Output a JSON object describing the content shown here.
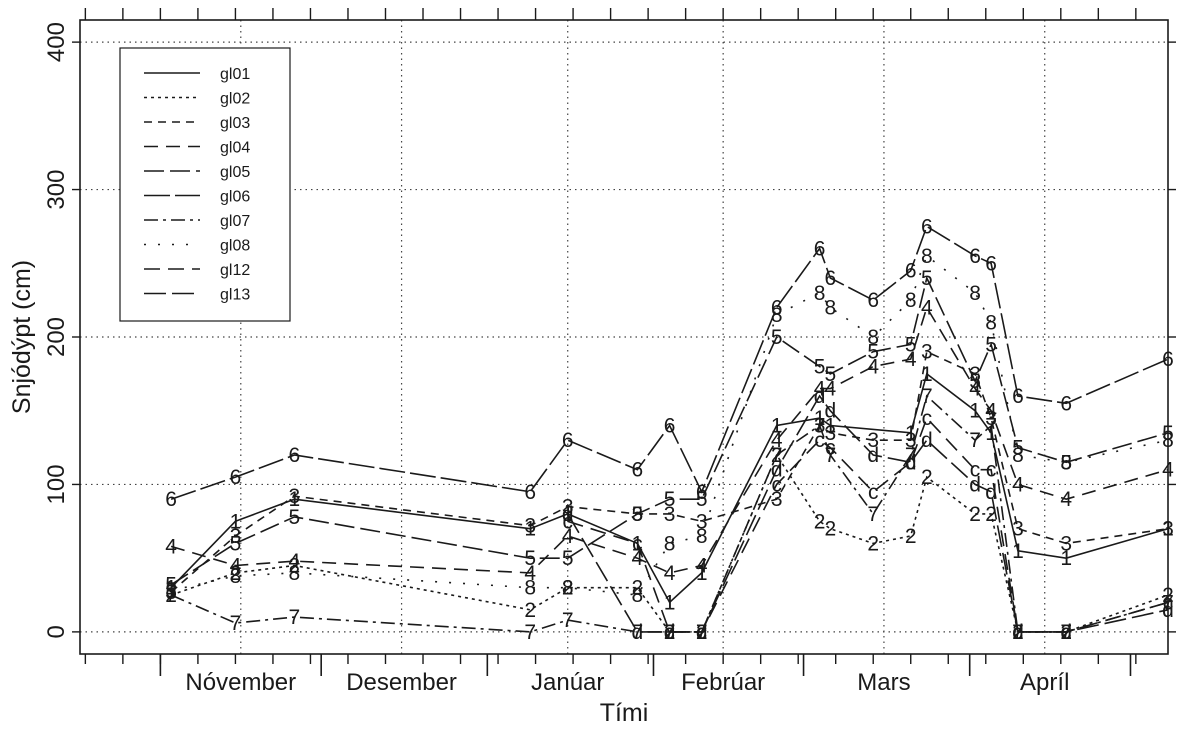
{
  "chart_data": {
    "type": "line",
    "xlabel": "Tími",
    "ylabel": "Snjódýpt (cm)",
    "ylim": [
      -15,
      415
    ],
    "yticks": [
      0,
      100,
      200,
      300,
      400
    ],
    "xlim": [
      "2000-10-17",
      "2001-05-08"
    ],
    "month_labels": [
      "Nóvember",
      "Desember",
      "Janúar",
      "Febrúar",
      "Mars",
      "Apríl"
    ],
    "month_label_dates": [
      "2000-11-16",
      "2000-12-16",
      "2001-01-16",
      "2001-02-14",
      "2001-03-16",
      "2001-04-15"
    ],
    "month_boundaries": [
      "2000-11-01",
      "2000-12-01",
      "2001-01-01",
      "2001-02-01",
      "2001-03-01",
      "2001-04-01",
      "2001-05-01"
    ],
    "grid": true,
    "legend_position": "top-left",
    "series": [
      {
        "name": "gl01",
        "marker": "1",
        "dash": "none",
        "points": [
          [
            "2000-11-03",
            30
          ],
          [
            "2000-11-15",
            75
          ],
          [
            "2000-11-26",
            90
          ],
          [
            "2001-01-09",
            70
          ],
          [
            "2001-01-16",
            80
          ],
          [
            "2001-01-29",
            60
          ],
          [
            "2001-02-04",
            20
          ],
          [
            "2001-02-10",
            40
          ],
          [
            "2001-02-24",
            140
          ],
          [
            "2001-03-04",
            145
          ],
          [
            "2001-03-06",
            140
          ],
          [
            "2001-03-21",
            135
          ],
          [
            "2001-03-24",
            175
          ],
          [
            "2001-04-02",
            150
          ],
          [
            "2001-04-05",
            135
          ],
          [
            "2001-04-10",
            55
          ],
          [
            "2001-04-19",
            50
          ],
          [
            "2001-05-08",
            70
          ]
        ]
      },
      {
        "name": "gl02",
        "marker": "2",
        "dash": "3 4",
        "points": [
          [
            "2000-11-03",
            25
          ],
          [
            "2000-11-15",
            40
          ],
          [
            "2000-11-26",
            45
          ],
          [
            "2001-01-09",
            15
          ],
          [
            "2001-01-16",
            30
          ],
          [
            "2001-01-29",
            30
          ],
          [
            "2001-02-04",
            0
          ],
          [
            "2001-02-10",
            0
          ],
          [
            "2001-02-24",
            120
          ],
          [
            "2001-03-04",
            75
          ],
          [
            "2001-03-06",
            70
          ],
          [
            "2001-03-14",
            60
          ],
          [
            "2001-03-21",
            65
          ],
          [
            "2001-03-24",
            105
          ],
          [
            "2001-04-02",
            80
          ],
          [
            "2001-04-05",
            80
          ],
          [
            "2001-04-10",
            0
          ],
          [
            "2001-04-19",
            0
          ],
          [
            "2001-05-08",
            25
          ]
        ]
      },
      {
        "name": "gl03",
        "marker": "3",
        "dash": "8 6",
        "points": [
          [
            "2000-11-03",
            27
          ],
          [
            "2000-11-15",
            65
          ],
          [
            "2000-11-26",
            92
          ],
          [
            "2001-01-09",
            72
          ],
          [
            "2001-01-16",
            85
          ],
          [
            "2001-01-29",
            80
          ],
          [
            "2001-02-04",
            80
          ],
          [
            "2001-02-10",
            75
          ],
          [
            "2001-02-24",
            90
          ],
          [
            "2001-03-04",
            140
          ],
          [
            "2001-03-06",
            135
          ],
          [
            "2001-03-14",
            130
          ],
          [
            "2001-03-21",
            130
          ],
          [
            "2001-03-24",
            190
          ],
          [
            "2001-04-02",
            175
          ],
          [
            "2001-04-05",
            145
          ],
          [
            "2001-04-10",
            70
          ],
          [
            "2001-04-19",
            60
          ],
          [
            "2001-05-08",
            70
          ]
        ]
      },
      {
        "name": "gl04",
        "marker": "4",
        "dash": "14 8",
        "points": [
          [
            "2000-11-03",
            58
          ],
          [
            "2000-11-15",
            45
          ],
          [
            "2000-11-26",
            48
          ],
          [
            "2001-01-09",
            40
          ],
          [
            "2001-01-16",
            65
          ],
          [
            "2001-01-29",
            50
          ],
          [
            "2001-02-04",
            40
          ],
          [
            "2001-02-10",
            45
          ],
          [
            "2001-02-24",
            130
          ],
          [
            "2001-03-04",
            165
          ],
          [
            "2001-03-06",
            165
          ],
          [
            "2001-03-14",
            180
          ],
          [
            "2001-03-21",
            185
          ],
          [
            "2001-03-24",
            220
          ],
          [
            "2001-04-02",
            165
          ],
          [
            "2001-04-05",
            150
          ],
          [
            "2001-04-10",
            100
          ],
          [
            "2001-04-19",
            90
          ],
          [
            "2001-05-08",
            110
          ]
        ]
      },
      {
        "name": "gl05",
        "marker": "5",
        "dash": "20 6",
        "points": [
          [
            "2000-11-03",
            32
          ],
          [
            "2000-11-15",
            60
          ],
          [
            "2000-11-26",
            78
          ],
          [
            "2001-01-09",
            50
          ],
          [
            "2001-01-16",
            50
          ],
          [
            "2001-01-29",
            80
          ],
          [
            "2001-02-04",
            90
          ],
          [
            "2001-02-10",
            90
          ],
          [
            "2001-02-24",
            200
          ],
          [
            "2001-03-04",
            180
          ],
          [
            "2001-03-06",
            175
          ],
          [
            "2001-03-14",
            190
          ],
          [
            "2001-03-21",
            195
          ],
          [
            "2001-03-24",
            240
          ],
          [
            "2001-04-02",
            170
          ],
          [
            "2001-04-05",
            195
          ],
          [
            "2001-04-10",
            125
          ],
          [
            "2001-04-19",
            115
          ],
          [
            "2001-05-08",
            135
          ]
        ]
      },
      {
        "name": "gl06",
        "marker": "6",
        "dash": "26 5",
        "points": [
          [
            "2000-11-03",
            90
          ],
          [
            "2000-11-15",
            105
          ],
          [
            "2000-11-26",
            120
          ],
          [
            "2001-01-09",
            95
          ],
          [
            "2001-01-16",
            130
          ],
          [
            "2001-01-29",
            110
          ],
          [
            "2001-02-04",
            140
          ],
          [
            "2001-02-10",
            95
          ],
          [
            "2001-02-24",
            220
          ],
          [
            "2001-03-04",
            260
          ],
          [
            "2001-03-06",
            240
          ],
          [
            "2001-03-14",
            225
          ],
          [
            "2001-03-21",
            245
          ],
          [
            "2001-03-24",
            275
          ],
          [
            "2001-04-02",
            255
          ],
          [
            "2001-04-05",
            250
          ],
          [
            "2001-04-10",
            160
          ],
          [
            "2001-04-19",
            155
          ],
          [
            "2001-05-08",
            185
          ]
        ]
      },
      {
        "name": "gl07",
        "marker": "7",
        "dash": "14 5 3 5",
        "points": [
          [
            "2000-11-03",
            25
          ],
          [
            "2000-11-15",
            6
          ],
          [
            "2000-11-26",
            10
          ],
          [
            "2001-01-09",
            0
          ],
          [
            "2001-01-16",
            8
          ],
          [
            "2001-01-29",
            0
          ],
          [
            "2001-02-04",
            0
          ],
          [
            "2001-02-10",
            0
          ],
          [
            "2001-02-24",
            120
          ],
          [
            "2001-03-04",
            140
          ],
          [
            "2001-03-06",
            120
          ],
          [
            "2001-03-14",
            80
          ],
          [
            "2001-03-21",
            120
          ],
          [
            "2001-03-24",
            160
          ],
          [
            "2001-04-02",
            130
          ],
          [
            "2001-04-05",
            140
          ],
          [
            "2001-04-10",
            0
          ],
          [
            "2001-04-19",
            0
          ],
          [
            "2001-05-08",
            20
          ]
        ]
      },
      {
        "name": "gl08",
        "marker": "8",
        "dash": "2 12",
        "points": [
          [
            "2000-11-03",
            28
          ],
          [
            "2000-11-15",
            38
          ],
          [
            "2000-11-26",
            40
          ],
          [
            "2001-01-09",
            30
          ],
          [
            "2001-01-16",
            30
          ],
          [
            "2001-01-29",
            25
          ],
          [
            "2001-02-04",
            60
          ],
          [
            "2001-02-10",
            65
          ],
          [
            "2001-02-24",
            215
          ],
          [
            "2001-03-04",
            230
          ],
          [
            "2001-03-06",
            220
          ],
          [
            "2001-03-14",
            200
          ],
          [
            "2001-03-21",
            225
          ],
          [
            "2001-03-24",
            255
          ],
          [
            "2001-04-02",
            230
          ],
          [
            "2001-04-05",
            210
          ],
          [
            "2001-04-10",
            120
          ],
          [
            "2001-04-19",
            115
          ],
          [
            "2001-05-08",
            130
          ]
        ]
      },
      {
        "name": "gl12",
        "marker": "c",
        "dash": "16 8",
        "points": [
          [
            "2001-01-16",
            75
          ],
          [
            "2001-01-29",
            60
          ],
          [
            "2001-02-04",
            0
          ],
          [
            "2001-02-10",
            0
          ],
          [
            "2001-02-24",
            100
          ],
          [
            "2001-03-04",
            130
          ],
          [
            "2001-03-06",
            125
          ],
          [
            "2001-03-14",
            95
          ],
          [
            "2001-03-21",
            115
          ],
          [
            "2001-03-24",
            145
          ],
          [
            "2001-04-02",
            110
          ],
          [
            "2001-04-05",
            110
          ],
          [
            "2001-04-10",
            0
          ],
          [
            "2001-04-19",
            0
          ],
          [
            "2001-05-08",
            20
          ]
        ]
      },
      {
        "name": "gl13",
        "marker": "d",
        "dash": "22 6",
        "points": [
          [
            "2001-01-16",
            80
          ],
          [
            "2001-01-29",
            0
          ],
          [
            "2001-02-04",
            0
          ],
          [
            "2001-02-10",
            0
          ],
          [
            "2001-02-24",
            110
          ],
          [
            "2001-03-04",
            160
          ],
          [
            "2001-03-06",
            150
          ],
          [
            "2001-03-14",
            120
          ],
          [
            "2001-03-21",
            115
          ],
          [
            "2001-03-24",
            130
          ],
          [
            "2001-04-02",
            100
          ],
          [
            "2001-04-05",
            95
          ],
          [
            "2001-04-10",
            0
          ],
          [
            "2001-04-19",
            0
          ],
          [
            "2001-05-08",
            15
          ]
        ]
      }
    ]
  }
}
